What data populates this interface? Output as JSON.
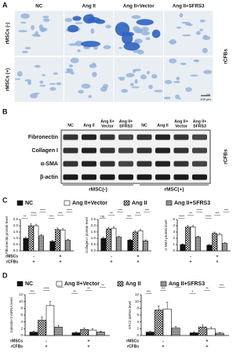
{
  "panel_a": {
    "label": "A",
    "columns": [
      "NC",
      "Ang II",
      "Ang II+Vector",
      "Ang II+SFRS3"
    ],
    "rows": [
      "rMSCs (-)",
      "rMSCs (+)"
    ],
    "side_label": "rCFBs",
    "scale_bar": "100 μm"
  },
  "panel_b": {
    "label": "B",
    "columns": [
      [
        "NC"
      ],
      [
        "Ang II"
      ],
      [
        "Ang II+",
        "Vector"
      ],
      [
        "Ang II+",
        "SFRS3"
      ],
      [
        "NC"
      ],
      [
        "Ang II"
      ],
      [
        "Ang II+",
        "Vector"
      ],
      [
        "Ang II+",
        "SFRS3"
      ]
    ],
    "rows": [
      "Fibronectin",
      "Collagen I",
      "α-SMA",
      "β-actin"
    ],
    "groups": [
      "rMSC(-)",
      "rMSC(+)"
    ],
    "side_label": "rCFBs"
  },
  "chart_data": [
    {
      "type": "bar",
      "panel": "C",
      "ylabel": "Fibronectin protein level",
      "ylim": [
        0,
        2.5
      ],
      "yticks": [
        {
          "value": 0,
          "label": "0.0"
        },
        0.5,
        {
          "value": 1,
          "label": "1.0"
        },
        1.5,
        {
          "value": 2,
          "label": "2.0"
        },
        2.5
      ],
      "x_rows": [
        {
          "label": "rMSCs",
          "values": [
            "-",
            "+"
          ]
        },
        {
          "label": "rCFBs",
          "values": [
            "+",
            "+"
          ]
        }
      ],
      "series": [
        {
          "name": "NC",
          "color": "#111111",
          "values": [
            1.0,
            0.75
          ],
          "errors": [
            0.08,
            0.07
          ]
        },
        {
          "name": "Ang II",
          "color": "#111111",
          "pattern": "checker",
          "values": [
            2.0,
            1.7
          ],
          "errors": [
            0.15,
            0.12
          ]
        },
        {
          "name": "Ang II+Vector",
          "color": "#ffffff",
          "values": [
            2.0,
            1.65
          ],
          "errors": [
            0.12,
            0.12
          ]
        },
        {
          "name": "Ang II+SFRS3",
          "color": "#888888",
          "pattern": "lines",
          "values": [
            1.2,
            0.85
          ],
          "errors": [
            0.1,
            0.08
          ]
        }
      ],
      "annotations": [
        "**",
        "****",
        "****",
        "***",
        "***",
        "****"
      ]
    },
    {
      "type": "bar",
      "ylabel": "Collagen I protein level",
      "ylim": [
        0,
        2.5
      ],
      "yticks": [
        {
          "value": 0,
          "label": "0.0"
        },
        0.5,
        {
          "value": 1,
          "label": "1.0"
        },
        1.5,
        {
          "value": 2,
          "label": "2.0"
        },
        2.5
      ],
      "x_rows": [
        {
          "values": [
            "-",
            "+"
          ]
        },
        {
          "values": [
            "+",
            "+"
          ]
        }
      ],
      "series": [
        {
          "color": "#111111",
          "values": [
            1.0,
            0.85
          ],
          "errors": [
            0.08,
            0.07
          ]
        },
        {
          "color": "#111111",
          "pattern": "checker",
          "values": [
            1.75,
            1.5
          ],
          "errors": [
            0.12,
            0.1
          ]
        },
        {
          "color": "#ffffff",
          "values": [
            1.8,
            1.6
          ],
          "errors": [
            0.12,
            0.1
          ]
        },
        {
          "color": "#888888",
          "pattern": "lines",
          "values": [
            1.1,
            0.8
          ],
          "errors": [
            0.08,
            0.07
          ]
        }
      ],
      "annotations": [
        "ns",
        "**",
        "***",
        "***",
        "***",
        "***"
      ]
    },
    {
      "type": "bar",
      "ylabel": "α-SMA protein level",
      "ylim": [
        0,
        5
      ],
      "yticks": [
        0,
        1,
        2,
        3,
        4,
        5
      ],
      "x_rows": [
        {
          "values": [
            "-",
            "+"
          ]
        },
        {
          "values": [
            "+",
            "+"
          ]
        }
      ],
      "series": [
        {
          "color": "#111111",
          "values": [
            1.0,
            0.9
          ],
          "errors": [
            0.1,
            0.1
          ]
        },
        {
          "color": "#111111",
          "pattern": "checker",
          "values": [
            3.8,
            2.8
          ],
          "errors": [
            0.25,
            0.2
          ]
        },
        {
          "color": "#ffffff",
          "values": [
            3.8,
            2.6
          ],
          "errors": [
            0.25,
            0.2
          ]
        },
        {
          "color": "#888888",
          "pattern": "lines",
          "values": [
            2.2,
            1.2
          ],
          "errors": [
            0.15,
            0.1
          ]
        }
      ],
      "annotations": [
        "****",
        "**",
        "****",
        "****",
        "***",
        "***"
      ]
    },
    {
      "type": "bar",
      "panel": "D",
      "ylabel": "Galectin-3 mRNA level",
      "ylim": [
        0,
        12
      ],
      "yticks": [
        0,
        2,
        4,
        6,
        8,
        10,
        12
      ],
      "x_rows": [
        {
          "label": "rMSCs",
          "values": [
            "-",
            "+"
          ]
        },
        {
          "label": "rCFBs",
          "values": [
            "+",
            "+"
          ]
        }
      ],
      "series": [
        {
          "name": "NC",
          "color": "#111111",
          "values": [
            1.0,
            0.8
          ],
          "errors": [
            0.3,
            0.3
          ]
        },
        {
          "name": "Ang II",
          "color": "#111111",
          "pattern": "checker",
          "values": [
            4.5,
            1.8
          ],
          "errors": [
            1.0,
            0.4
          ]
        },
        {
          "name": "Ang II+Vector",
          "color": "#ffffff",
          "values": [
            8.8,
            1.6
          ],
          "errors": [
            1.2,
            0.4
          ]
        },
        {
          "name": "Ang II+SFRS3",
          "color": "#888888",
          "pattern": "lines",
          "values": [
            2.5,
            1.0
          ],
          "errors": [
            0.5,
            0.3
          ]
        }
      ],
      "annotations": [
        "***",
        "****",
        "**",
        "**",
        "**",
        "**"
      ]
    },
    {
      "type": "bar",
      "ylabel": "STC2 mRNA level",
      "ylim": [
        0,
        12
      ],
      "yticks": [
        0,
        2,
        4,
        6,
        8,
        10,
        12
      ],
      "x_rows": [
        {
          "label": "rMSCs",
          "values": [
            "-",
            "+"
          ]
        },
        {
          "label": "rCFBs",
          "values": [
            "+",
            "+"
          ]
        }
      ],
      "series": [
        {
          "color": "#111111",
          "values": [
            1.0,
            0.8
          ],
          "errors": [
            0.3,
            0.3
          ]
        },
        {
          "color": "#111111",
          "pattern": "checker",
          "values": [
            7.5,
            2.5
          ],
          "errors": [
            1.2,
            0.6
          ]
        },
        {
          "color": "#ffffff",
          "values": [
            7.8,
            2.0
          ],
          "errors": [
            2.0,
            0.5
          ]
        },
        {
          "color": "#888888",
          "pattern": "lines",
          "values": [
            2.2,
            0.7
          ],
          "errors": [
            0.5,
            0.2
          ]
        }
      ],
      "annotations": [
        "***",
        "***",
        "**",
        "*",
        "**",
        "***"
      ]
    }
  ]
}
